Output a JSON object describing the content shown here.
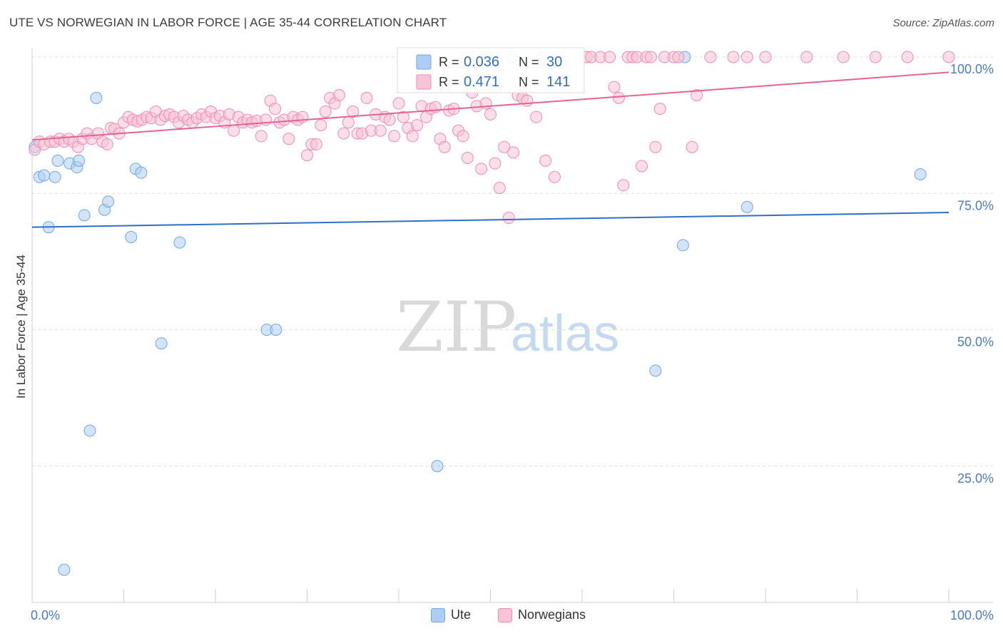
{
  "chart_data": {
    "type": "scatter",
    "title": "UTE VS NORWEGIAN IN LABOR FORCE | AGE 35-44 CORRELATION CHART",
    "source": "Source: ZipAtlas.com",
    "xlabel": "",
    "ylabel": "In Labor Force | Age 35-44",
    "xlim": [
      0,
      100
    ],
    "ylim": [
      0,
      100
    ],
    "x_tick_labels": {
      "left": "0.0%",
      "right": "100.0%"
    },
    "y_tick_labels": [
      {
        "value": 100,
        "label": "100.0%"
      },
      {
        "value": 75,
        "label": "75.0%"
      },
      {
        "value": 50,
        "label": "50.0%"
      },
      {
        "value": 25,
        "label": "25.0%"
      }
    ],
    "grid": true,
    "watermark": "ZIPatlas",
    "legend_position": "top-center",
    "series": [
      {
        "name": "Ute",
        "color": "#6fa8e6",
        "fill": "#aecdf2",
        "line_color": "#2e6fcc",
        "R_label": "R =",
        "R": "0.036",
        "N_label": "N =",
        "N": "30",
        "trend": {
          "x": [
            0,
            100
          ],
          "y": [
            68.8,
            71.5
          ]
        },
        "points": [
          [
            0.3,
            83.5
          ],
          [
            0.8,
            78
          ],
          [
            1.3,
            78.3
          ],
          [
            1.8,
            68.8
          ],
          [
            2.5,
            78
          ],
          [
            2.8,
            81
          ],
          [
            3.5,
            6
          ],
          [
            4.1,
            80.5
          ],
          [
            4.9,
            79.8
          ],
          [
            5.1,
            81
          ],
          [
            5.7,
            71
          ],
          [
            6.3,
            31.5
          ],
          [
            7.0,
            92.5
          ],
          [
            7.9,
            72
          ],
          [
            8.3,
            73.5
          ],
          [
            10.8,
            67
          ],
          [
            11.3,
            79.5
          ],
          [
            11.9,
            78.8
          ],
          [
            14.1,
            47.5
          ],
          [
            16.1,
            66
          ],
          [
            25.6,
            50
          ],
          [
            26.6,
            50
          ],
          [
            44.2,
            25
          ],
          [
            52.3,
            100
          ],
          [
            55.7,
            99.8
          ],
          [
            71.0,
            65.5
          ],
          [
            71.2,
            100
          ],
          [
            68.0,
            42.5
          ],
          [
            78.0,
            72.5
          ],
          [
            96.9,
            78.5
          ]
        ]
      },
      {
        "name": "Norwegians",
        "color": "#f08cb0",
        "fill": "#f7c3d6",
        "line_color": "#e46393",
        "R_label": "R =",
        "R": "0.471",
        "N_label": "N =",
        "N": "141",
        "trend": {
          "x": [
            0,
            100
          ],
          "y": [
            84.8,
            97.2
          ]
        },
        "points": [
          [
            0.3,
            83
          ],
          [
            0.8,
            84.5
          ],
          [
            1.3,
            84
          ],
          [
            2.0,
            84.5
          ],
          [
            2.5,
            84.5
          ],
          [
            3.0,
            85
          ],
          [
            3.5,
            84.5
          ],
          [
            4.0,
            85
          ],
          [
            4.5,
            84.5
          ],
          [
            5.0,
            83.5
          ],
          [
            5.5,
            85
          ],
          [
            6.0,
            86
          ],
          [
            6.5,
            85
          ],
          [
            7.2,
            86
          ],
          [
            7.7,
            84.5
          ],
          [
            8.2,
            84
          ],
          [
            8.6,
            87
          ],
          [
            9.0,
            86.8
          ],
          [
            9.5,
            86
          ],
          [
            10.0,
            88
          ],
          [
            10.5,
            89
          ],
          [
            11.0,
            88.5
          ],
          [
            11.5,
            88.2
          ],
          [
            12.0,
            88.5
          ],
          [
            12.5,
            89
          ],
          [
            13.0,
            88.8
          ],
          [
            13.5,
            90
          ],
          [
            14.0,
            88.5
          ],
          [
            14.5,
            89.2
          ],
          [
            15.0,
            89.5
          ],
          [
            15.5,
            89
          ],
          [
            16.0,
            88
          ],
          [
            16.5,
            89.2
          ],
          [
            17.0,
            88.5
          ],
          [
            17.5,
            88
          ],
          [
            18.0,
            88.8
          ],
          [
            18.5,
            89.5
          ],
          [
            19.0,
            89
          ],
          [
            19.5,
            90
          ],
          [
            20.0,
            88.8
          ],
          [
            20.5,
            89.2
          ],
          [
            21.0,
            88
          ],
          [
            21.5,
            89.5
          ],
          [
            22.0,
            86.5
          ],
          [
            22.5,
            89
          ],
          [
            23.0,
            88
          ],
          [
            23.5,
            88.5
          ],
          [
            24.0,
            88
          ],
          [
            24.5,
            88.3
          ],
          [
            25.0,
            85.5
          ],
          [
            25.5,
            88.5
          ],
          [
            26.0,
            92
          ],
          [
            26.5,
            90.5
          ],
          [
            27.0,
            88
          ],
          [
            27.5,
            88.5
          ],
          [
            28.0,
            85
          ],
          [
            28.5,
            89
          ],
          [
            29.0,
            88.5
          ],
          [
            29.5,
            89
          ],
          [
            30.0,
            82
          ],
          [
            30.5,
            84
          ],
          [
            31.0,
            84
          ],
          [
            31.5,
            87.5
          ],
          [
            32.0,
            90
          ],
          [
            32.5,
            92.5
          ],
          [
            33.0,
            91.5
          ],
          [
            33.5,
            93
          ],
          [
            34.0,
            86
          ],
          [
            34.5,
            88
          ],
          [
            35.0,
            90
          ],
          [
            35.5,
            86
          ],
          [
            36.0,
            86
          ],
          [
            36.5,
            92.5
          ],
          [
            37.0,
            86.5
          ],
          [
            37.5,
            89.5
          ],
          [
            38.0,
            86.5
          ],
          [
            38.5,
            89
          ],
          [
            39.0,
            88.5
          ],
          [
            39.5,
            85.5
          ],
          [
            40.0,
            91.5
          ],
          [
            40.5,
            89
          ],
          [
            41.0,
            87
          ],
          [
            41.5,
            85.5
          ],
          [
            42.0,
            87.5
          ],
          [
            42.5,
            91
          ],
          [
            43.0,
            89
          ],
          [
            43.5,
            90.5
          ],
          [
            44.0,
            90.8
          ],
          [
            44.5,
            85
          ],
          [
            45.0,
            83.5
          ],
          [
            45.5,
            90.2
          ],
          [
            46.0,
            90.5
          ],
          [
            46.5,
            86.5
          ],
          [
            47.0,
            85.5
          ],
          [
            47.5,
            81.5
          ],
          [
            48.0,
            93.5
          ],
          [
            48.5,
            91
          ],
          [
            49.0,
            79.5
          ],
          [
            49.5,
            91.5
          ],
          [
            50.0,
            89.5
          ],
          [
            50.5,
            80.5
          ],
          [
            51.0,
            76
          ],
          [
            51.5,
            83.5
          ],
          [
            52.0,
            70.5
          ],
          [
            52.5,
            82.5
          ],
          [
            53.0,
            93
          ],
          [
            53.5,
            92.5
          ],
          [
            54.0,
            92
          ],
          [
            55.0,
            89
          ],
          [
            56.0,
            81
          ],
          [
            57.0,
            78
          ],
          [
            60.5,
            100
          ],
          [
            61.0,
            100
          ],
          [
            62.0,
            100
          ],
          [
            63.0,
            100
          ],
          [
            63.5,
            94.5
          ],
          [
            64.0,
            92.5
          ],
          [
            64.5,
            76.5
          ],
          [
            65.0,
            100
          ],
          [
            65.5,
            100
          ],
          [
            66.0,
            100
          ],
          [
            66.5,
            80
          ],
          [
            67.0,
            100
          ],
          [
            67.5,
            100
          ],
          [
            68.0,
            83.5
          ],
          [
            68.5,
            90.5
          ],
          [
            69.0,
            100
          ],
          [
            70.0,
            100
          ],
          [
            70.5,
            100
          ],
          [
            72.0,
            83.5
          ],
          [
            72.5,
            93
          ],
          [
            74.0,
            100
          ],
          [
            76.5,
            100
          ],
          [
            78.0,
            100
          ],
          [
            80.0,
            100
          ],
          [
            84.5,
            100
          ],
          [
            88.5,
            100
          ],
          [
            92.0,
            100
          ],
          [
            95.5,
            100
          ],
          [
            100.0,
            100
          ]
        ]
      }
    ]
  }
}
